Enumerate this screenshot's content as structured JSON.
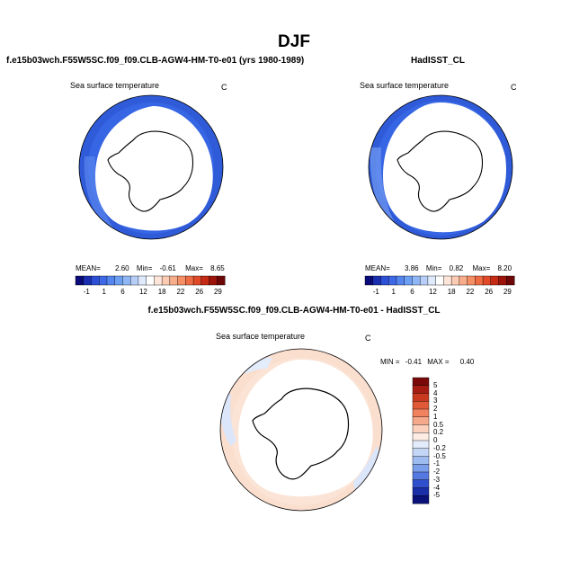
{
  "main_title": "DJF",
  "panel_left": {
    "case_title": "f.e15b03wch.F55W5SC.f09_f09.CLB-AGW4-HM-T0-e01 (yrs 1980-1989)",
    "var_label": "Sea surface temperature",
    "units": "C",
    "stats": {
      "mean_label": "MEAN=",
      "mean": "2.60",
      "min_label": "Min=",
      "min": "-0.61",
      "max_label": "Max=",
      "max": "8.65"
    }
  },
  "panel_right": {
    "case_title": "HadISST_CL",
    "var_label": "Sea surface temperature",
    "units": "C",
    "stats": {
      "mean_label": "MEAN=",
      "mean": "3.86",
      "min_label": "Min=",
      "min": "0.82",
      "max_label": "Max=",
      "max": "8.20"
    }
  },
  "panel_diff": {
    "case_title": "f.e15b03wch.F55W5SC.f09_f09.CLB-AGW4-HM-T0-e01 - HadISST_CL",
    "var_label": "Sea surface temperature",
    "units": "C",
    "minmax": {
      "min_label": "MIN =",
      "min": "-0.41",
      "max_label": "MAX =",
      "max": "0.40"
    }
  },
  "colorbar_abs": {
    "labels": [
      "-1",
      "1",
      "6",
      "12",
      "18",
      "22",
      "26",
      "29"
    ],
    "colors": [
      "#0a0a78",
      "#1a2fb0",
      "#2c4fd6",
      "#3f68e6",
      "#5585ee",
      "#6d9ff2",
      "#8fb6f5",
      "#b7cff8",
      "#dfeafc",
      "#ffffff",
      "#fde6d9",
      "#fbcbb3",
      "#f8ad8b",
      "#f48f66",
      "#ee6c43",
      "#e04a28",
      "#c52a14",
      "#9d140a",
      "#6e0707"
    ]
  },
  "colorbar_diff": {
    "labels": [
      "5",
      "4",
      "3",
      "2",
      "1",
      "0.5",
      "0.2",
      "0",
      "-0.2",
      "-0.5",
      "-1",
      "-2",
      "-3",
      "-4",
      "-5"
    ],
    "colors": [
      "#7a0a0a",
      "#a51c12",
      "#c8391f",
      "#e05a38",
      "#f0825f",
      "#f6a88a",
      "#fbd0bd",
      "#fcece3",
      "#e3ecfb",
      "#c4d6f6",
      "#9fbcf1",
      "#7a9eea",
      "#5478e0",
      "#2f4fcc",
      "#1a2ea8",
      "#0a127a"
    ]
  }
}
